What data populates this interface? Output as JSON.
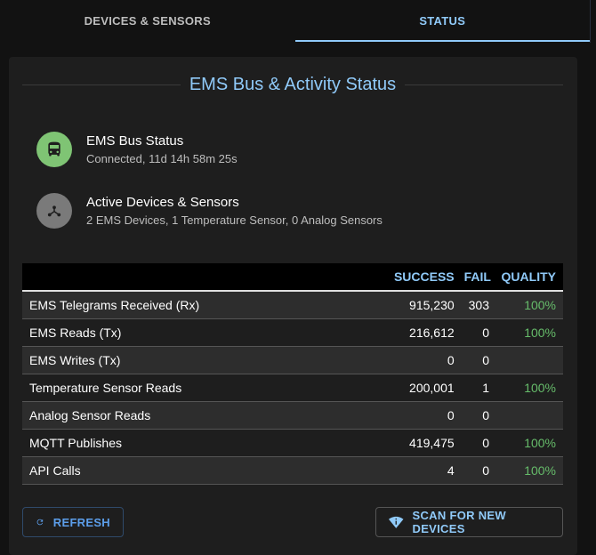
{
  "tabs": [
    {
      "label": "DEVICES & SENSORS",
      "active": false
    },
    {
      "label": "STATUS",
      "active": true
    }
  ],
  "title": "EMS Bus & Activity Status",
  "items": [
    {
      "primary": "EMS Bus Status",
      "secondary": "Connected, 11d 14h 58m 25s",
      "icon": "bus-icon",
      "color": "#7fc474"
    },
    {
      "primary": "Active Devices & Sensors",
      "secondary": "2 EMS Devices, 1 Temperature Sensor, 0 Analog Sensors",
      "icon": "device-hub-icon",
      "color": "#7a7a7a"
    }
  ],
  "table": {
    "headers": [
      "",
      "SUCCESS",
      "FAIL",
      "QUALITY"
    ],
    "rows": [
      {
        "name": "EMS Telegrams Received (Rx)",
        "success": "915,230",
        "fail": "303",
        "quality": "100%"
      },
      {
        "name": "EMS Reads (Tx)",
        "success": "216,612",
        "fail": "0",
        "quality": "100%"
      },
      {
        "name": "EMS Writes (Tx)",
        "success": "0",
        "fail": "0",
        "quality": ""
      },
      {
        "name": "Temperature Sensor Reads",
        "success": "200,001",
        "fail": "1",
        "quality": "100%"
      },
      {
        "name": "Analog Sensor Reads",
        "success": "0",
        "fail": "0",
        "quality": ""
      },
      {
        "name": "MQTT Publishes",
        "success": "419,475",
        "fail": "0",
        "quality": "100%"
      },
      {
        "name": "API Calls",
        "success": "4",
        "fail": "0",
        "quality": "100%"
      }
    ]
  },
  "buttons": {
    "refresh": "REFRESH",
    "scan": "SCAN FOR NEW DEVICES"
  }
}
